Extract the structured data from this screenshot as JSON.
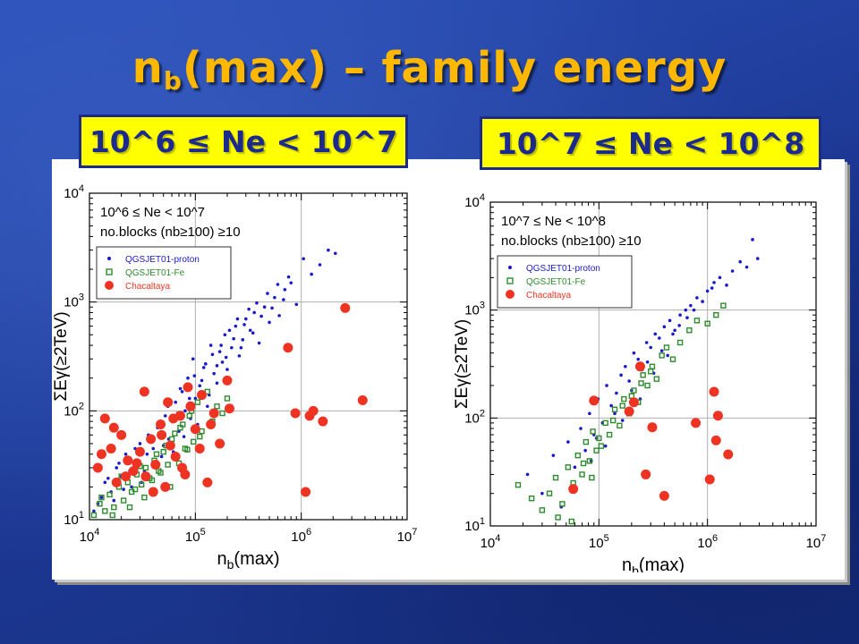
{
  "slide": {
    "title_base": "n",
    "title_sub": "b",
    "title_rest": "(max) – family energy",
    "range_left": "10^6 ≤ Ne < 10^7",
    "range_right": "10^7 ≤ Ne < 10^8"
  },
  "colors": {
    "title": "#ffb800",
    "box_fill": "#ffff00",
    "box_border": "#1b2a8c",
    "proton": "#1a1acc",
    "fe": "#2e8b2e",
    "chacaltaya": "#ee3322"
  },
  "chart_data": [
    {
      "type": "scatter",
      "x_scale": "log",
      "y_scale": "log",
      "xlim": [
        10000,
        10000000
      ],
      "ylim": [
        10,
        10000
      ],
      "grid": true,
      "x_ticks": [
        10000,
        100000,
        1000000,
        10000000
      ],
      "y_ticks": [
        10,
        100,
        1000,
        10000
      ],
      "x_tick_labels": [
        {
          "base": "10",
          "exp": "4"
        },
        {
          "base": "10",
          "exp": "5"
        },
        {
          "base": "10",
          "exp": "6"
        },
        {
          "base": "10",
          "exp": "7"
        }
      ],
      "y_tick_labels": [
        {
          "base": "10",
          "exp": "1"
        },
        {
          "base": "10",
          "exp": "2"
        },
        {
          "base": "10",
          "exp": "3"
        },
        {
          "base": "10",
          "exp": "4"
        }
      ],
      "xlabel": {
        "main": "n",
        "sub": "b",
        "rest": "(max)"
      },
      "ylabel": {
        "main": "ΣEγ(≥2TeV)"
      },
      "annotation": [
        "10^6 ≤ Ne < 10^7",
        "no.blocks (nb≥100) ≥10"
      ],
      "legend_placement": "top-left",
      "series": [
        {
          "name": "QGSJET01-proton",
          "marker": "dot",
          "color": "#1a1acc",
          "x": [
            12000,
            14000,
            16000,
            18000,
            20000,
            22000,
            25000,
            28000,
            30000,
            33000,
            36000,
            40000,
            44000,
            48000,
            52000,
            56000,
            60000,
            65000,
            70000,
            75000,
            80000,
            85000,
            90000,
            95000,
            100000,
            110000,
            120000,
            130000,
            140000,
            150000,
            160000,
            170000,
            180000,
            190000,
            200000,
            220000,
            240000,
            260000,
            280000,
            300000,
            330000,
            360000,
            400000,
            450000,
            500000,
            560000,
            620000,
            700000,
            800000,
            900000,
            1050000,
            1250000,
            1500000,
            1800000,
            2100000,
            11000,
            13000,
            15000,
            17000,
            19000,
            21000,
            24000,
            27000,
            31000,
            35000,
            38000,
            42000,
            46000,
            50000,
            55000,
            62000,
            68000,
            72000,
            78000,
            88000,
            98000,
            105000,
            115000,
            125000,
            135000,
            145000,
            160000,
            175000,
            195000,
            210000,
            230000,
            250000,
            270000,
            290000,
            320000,
            350000,
            380000,
            420000,
            480000,
            530000,
            600000,
            680000,
            760000
          ],
          "y": [
            14,
            22,
            18,
            30,
            25,
            40,
            20,
            35,
            50,
            28,
            60,
            45,
            70,
            38,
            90,
            55,
            80,
            120,
            65,
            150,
            100,
            200,
            85,
            300,
            130,
            170,
            250,
            110,
            400,
            220,
            180,
            350,
            280,
            500,
            240,
            380,
            600,
            320,
            450,
            700,
            550,
            800,
            420,
            900,
            650,
            1100,
            750,
            1300,
            1500,
            950,
            2500,
            1800,
            2200,
            3000,
            2800,
            12,
            16,
            24,
            15,
            33,
            19,
            28,
            45,
            22,
            40,
            55,
            32,
            75,
            48,
            110,
            42,
            95,
            160,
            58,
            130,
            210,
            75,
            190,
            270,
            140,
            330,
            260,
            400,
            310,
            550,
            460,
            700,
            380,
            620,
            860,
            520,
            980,
            740,
            1200,
            880,
            1450,
            1050,
            1700
          ]
        },
        {
          "name": "QGSJET01-Fe",
          "marker": "square",
          "color": "#2e8b2e",
          "x": [
            11000,
            12500,
            14000,
            15500,
            17000,
            19000,
            21000,
            23000,
            25000,
            28000,
            31000,
            34000,
            37000,
            41000,
            45000,
            50000,
            55000,
            60000,
            66000,
            72000,
            80000,
            88000,
            96000,
            105000,
            115000,
            130000,
            145000,
            160000,
            180000,
            200000,
            13000,
            16500,
            20000,
            24000,
            27000,
            30000,
            33000,
            39000,
            43000,
            47000,
            53000,
            58000,
            64000,
            70000,
            76000,
            84000,
            92000,
            110000
          ],
          "y": [
            11,
            14,
            12,
            17,
            13,
            20,
            15,
            22,
            18,
            26,
            21,
            30,
            24,
            35,
            28,
            42,
            32,
            55,
            38,
            70,
            45,
            90,
            52,
            120,
            65,
            150,
            80,
            110,
            95,
            130,
            16,
            11,
            25,
            13,
            19,
            31,
            16,
            23,
            40,
            27,
            48,
            20,
            62,
            33,
            75,
            44,
            100,
            58
          ]
        },
        {
          "name": "Chacaltaya",
          "marker": "circle",
          "color": "#ee3322",
          "x": [
            12000,
            14000,
            16000,
            18000,
            20000,
            23000,
            26000,
            30000,
            34000,
            38000,
            42000,
            47000,
            52000,
            58000,
            65000,
            72000,
            80000,
            90000,
            100000,
            115000,
            130000,
            150000,
            170000,
            200000,
            13000,
            17000,
            22000,
            28000,
            33000,
            40000,
            48000,
            55000,
            62000,
            75000,
            85000,
            110000,
            140000,
            210000,
            750000,
            880000,
            1100000,
            1200000,
            1300000,
            1600000,
            2600000,
            3800000
          ],
          "y": [
            30,
            85,
            45,
            22,
            60,
            35,
            28,
            42,
            25,
            55,
            32,
            75,
            20,
            48,
            38,
            90,
            26,
            110,
            68,
            140,
            22,
            95,
            50,
            190,
            40,
            70,
            25,
            33,
            150,
            18,
            60,
            120,
            85,
            30,
            165,
            45,
            75,
            105,
            380,
            95,
            18,
            90,
            100,
            80,
            880,
            125
          ]
        }
      ]
    },
    {
      "type": "scatter",
      "x_scale": "log",
      "y_scale": "log",
      "xlim": [
        10000,
        10000000
      ],
      "ylim": [
        10,
        10000
      ],
      "grid": true,
      "x_ticks": [
        10000,
        100000,
        1000000,
        10000000
      ],
      "y_ticks": [
        10,
        100,
        1000,
        10000
      ],
      "x_tick_labels": [
        {
          "base": "10",
          "exp": "4"
        },
        {
          "base": "10",
          "exp": "5"
        },
        {
          "base": "10",
          "exp": "6"
        },
        {
          "base": "10",
          "exp": "7"
        }
      ],
      "y_tick_labels": [
        {
          "base": "10",
          "exp": "1"
        },
        {
          "base": "10",
          "exp": "2"
        },
        {
          "base": "10",
          "exp": "3"
        },
        {
          "base": "10",
          "exp": "4"
        }
      ],
      "xlabel": {
        "main": "n",
        "sub": "b",
        "rest": "(max)"
      },
      "ylabel": {
        "main": "ΣEγ(≥2TeV)"
      },
      "annotation": [
        "10^7 ≤ Ne < 10^8",
        "no.blocks (nb≥100) ≥10"
      ],
      "legend_placement": "top-left",
      "series": [
        {
          "name": "QGSJET01-proton",
          "marker": "dot",
          "color": "#1a1acc",
          "x": [
            22000,
            30000,
            38000,
            45000,
            52000,
            60000,
            68000,
            75000,
            82000,
            90000,
            98000,
            108000,
            118000,
            130000,
            145000,
            160000,
            175000,
            190000,
            210000,
            230000,
            250000,
            275000,
            300000,
            330000,
            360000,
            400000,
            450000,
            500000,
            560000,
            630000,
            700000,
            800000,
            900000,
            1000000,
            1150000,
            1300000,
            1500000,
            1700000,
            2000000,
            2300000,
            2600000,
            2900000,
            85000,
            95000,
            115000,
            140000,
            165000,
            200000,
            240000,
            280000,
            320000,
            380000,
            430000,
            480000,
            550000,
            650000,
            750000,
            1100000
          ],
          "y": [
            30,
            20,
            45,
            15,
            60,
            35,
            80,
            50,
            110,
            70,
            150,
            90,
            200,
            130,
            170,
            250,
            300,
            220,
            400,
            350,
            280,
            500,
            450,
            600,
            550,
            700,
            800,
            650,
            900,
            1000,
            1100,
            1300,
            1200,
            1500,
            1800,
            2000,
            1700,
            2300,
            2800,
            2500,
            4500,
            3000,
            40,
            65,
            55,
            110,
            95,
            180,
            150,
            330,
            260,
            420,
            380,
            600,
            720,
            850,
            1000,
            1600
          ]
        },
        {
          "name": "QGSJET01-Fe",
          "marker": "square",
          "color": "#2e8b2e",
          "x": [
            18000,
            24000,
            30000,
            35000,
            40000,
            46000,
            52000,
            58000,
            64000,
            70000,
            76000,
            82000,
            88000,
            95000,
            105000,
            115000,
            125000,
            140000,
            155000,
            170000,
            190000,
            210000,
            230000,
            255000,
            280000,
            310000,
            340000,
            380000,
            420000,
            480000,
            560000,
            680000,
            800000,
            1000000,
            1200000,
            1400000,
            42000,
            56000,
            72000,
            86000,
            100000,
            135000,
            165000,
            200000,
            245000,
            300000
          ],
          "y": [
            24,
            18,
            14,
            20,
            28,
            16,
            35,
            25,
            45,
            30,
            60,
            40,
            75,
            50,
            55,
            90,
            70,
            120,
            85,
            150,
            110,
            180,
            140,
            250,
            200,
            300,
            230,
            380,
            450,
            350,
            500,
            650,
            800,
            750,
            900,
            1100,
            12,
            11,
            38,
            28,
            65,
            95,
            130,
            160,
            210,
            270
          ]
        },
        {
          "name": "Chacaltaya",
          "marker": "circle",
          "color": "#ee3322",
          "x": [
            58000,
            90000,
            190000,
            210000,
            240000,
            270000,
            310000,
            400000,
            780000,
            1050000,
            1150000,
            1200000,
            1250000,
            1550000
          ],
          "y": [
            22,
            145,
            115,
            140,
            300,
            30,
            82,
            19,
            90,
            27,
            175,
            62,
            105,
            46
          ]
        }
      ]
    }
  ]
}
